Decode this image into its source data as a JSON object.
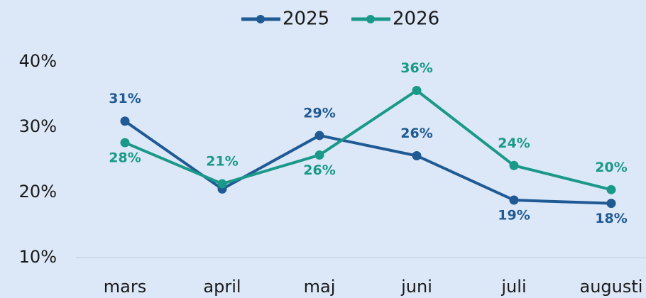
{
  "chart_data": {
    "type": "line",
    "categories": [
      "mars",
      "april",
      "maj",
      "juni",
      "juli",
      "augusti"
    ],
    "series": [
      {
        "name": "2025",
        "color": "#1f5a94",
        "values": [
          30.9,
          20.5,
          28.7,
          25.6,
          18.8,
          18.3
        ],
        "value_labels": [
          "31%",
          null,
          "29%",
          "26%",
          "19%",
          "18%"
        ]
      },
      {
        "name": "2026",
        "color": "#1a9988",
        "values": [
          27.6,
          21.3,
          25.7,
          35.6,
          24.1,
          20.4
        ],
        "value_labels": [
          "28%",
          "21%",
          "26%",
          "36%",
          "24%",
          "20%"
        ]
      }
    ],
    "ylim": [
      10,
      40
    ],
    "yticks": [
      {
        "value": 10,
        "label": "10%"
      },
      {
        "value": 20,
        "label": "20%"
      },
      {
        "value": 30,
        "label": "30%"
      },
      {
        "value": 40,
        "label": "40%"
      }
    ],
    "grid": false,
    "legend": "top"
  }
}
